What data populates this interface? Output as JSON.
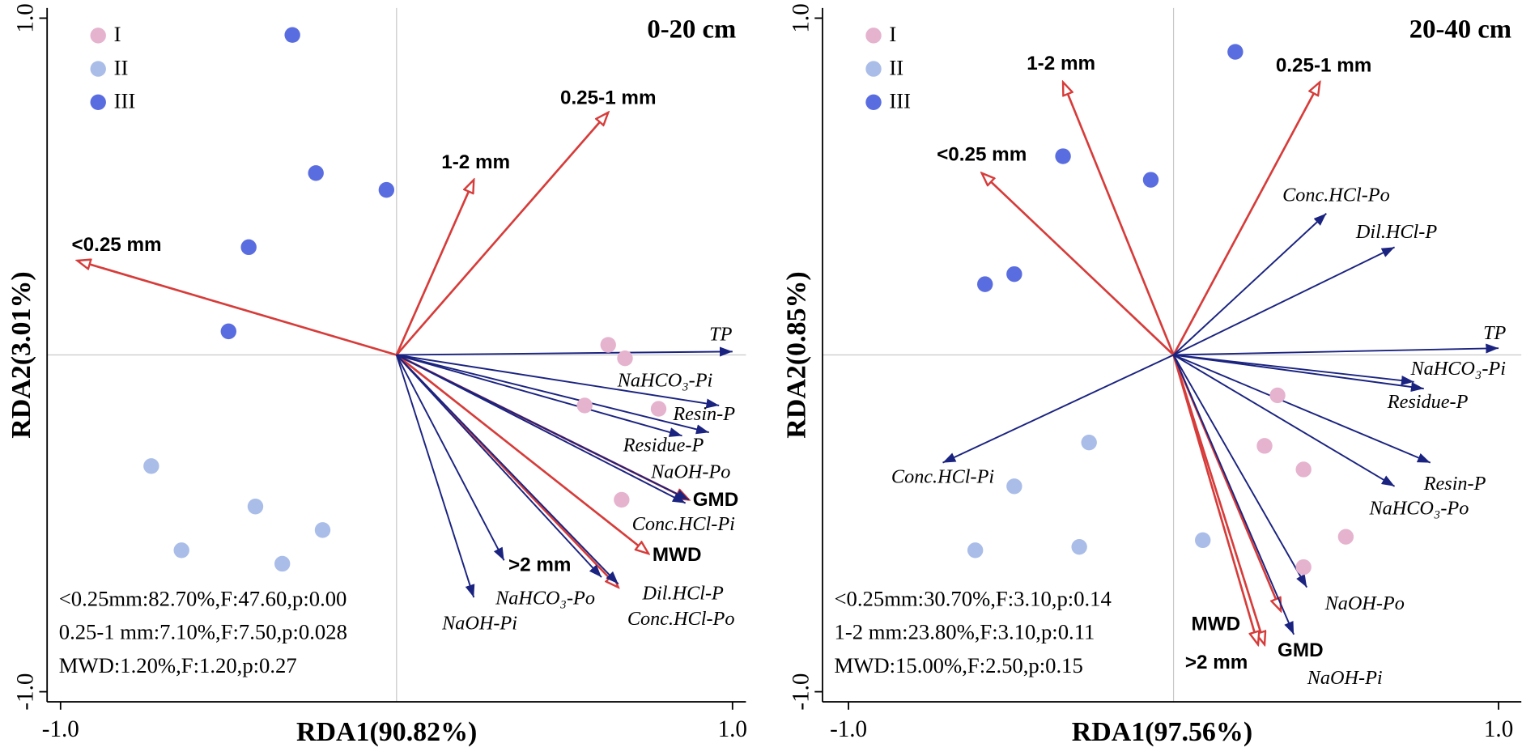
{
  "chart_data": [
    {
      "type": "rda-biplot",
      "corner_label": "0-20 cm",
      "x_label": "RDA1(90.82%)",
      "y_label": "RDA2(3.01%)",
      "xlim": [
        -1.04,
        1.04
      ],
      "ylim": [
        -1.03,
        1.03
      ],
      "xticks": [
        {
          "value": -1,
          "label": "-1.0"
        },
        {
          "value": 1,
          "label": "1.0"
        }
      ],
      "yticks": [
        {
          "value": -1,
          "label": "-1.0"
        },
        {
          "value": 1,
          "label": "1.0"
        }
      ],
      "series": [
        {
          "name": "I",
          "color": "#e6b3cf",
          "x": [
            0.63,
            0.68,
            0.56,
            0.78,
            0.67
          ],
          "y": [
            0.03,
            -0.01,
            -0.15,
            -0.16,
            -0.43
          ]
        },
        {
          "name": "II",
          "color": "#aabde8",
          "x": [
            -0.73,
            -0.42,
            -0.64,
            -0.34,
            -0.22
          ],
          "y": [
            -0.33,
            -0.45,
            -0.58,
            -0.62,
            -0.52
          ]
        },
        {
          "name": "III",
          "color": "#5a6de0",
          "x": [
            -0.31,
            -0.24,
            -0.03,
            -0.44,
            -0.5
          ],
          "y": [
            0.95,
            0.54,
            0.49,
            0.32,
            0.07
          ]
        }
      ],
      "arrow_groups": [
        {
          "color": "#d63c3a",
          "names": [
            "<0.25 mm",
            "1-2 mm",
            "0.25-1 mm",
            ">2 mm",
            "MWD",
            "GMD"
          ],
          "x": [
            -0.95,
            0.23,
            0.63,
            0.66,
            0.75,
            0.87
          ],
          "y": [
            0.28,
            0.52,
            0.72,
            -0.69,
            -0.59,
            -0.43
          ]
        },
        {
          "color": "#1a2380",
          "names": [
            "TP",
            "NaHCO₃-Pi",
            "Resin-P",
            "Residue-P",
            "NaOH-Po",
            "Conc.HCl-Pi",
            "Dil.HCl-P",
            "Conc.HCl-Po",
            "NaHCO₃-Po",
            "NaOH-Pi"
          ],
          "x": [
            1.0,
            0.96,
            0.93,
            0.85,
            0.87,
            0.86,
            0.66,
            0.61,
            0.32,
            0.23
          ],
          "y": [
            0.01,
            -0.15,
            -0.23,
            -0.24,
            -0.43,
            -0.44,
            -0.68,
            -0.66,
            -0.61,
            -0.72
          ]
        }
      ],
      "annotations": [
        "<0.25mm:82.70%,F:47.60,p:0.00",
        "0.25-1 mm:7.10%,F:7.50,p:0.028",
        "MWD:1.20%,F:1.20,p:0.27"
      ]
    },
    {
      "type": "rda-biplot",
      "corner_label": "20-40 cm",
      "x_label": "RDA1(97.56%)",
      "y_label": "RDA2(0.85%)",
      "xlim": [
        -1.08,
        1.07
      ],
      "ylim": [
        -1.03,
        1.03
      ],
      "xticks": [
        {
          "value": -1,
          "label": "-1.0"
        },
        {
          "value": 1,
          "label": "1.0"
        }
      ],
      "yticks": [
        {
          "value": -1,
          "label": "-1.0"
        },
        {
          "value": 1,
          "label": "1.0"
        }
      ],
      "series": [
        {
          "name": "I",
          "color": "#e6b3cf",
          "x": [
            0.32,
            0.28,
            0.4,
            0.53,
            0.4
          ],
          "y": [
            -0.12,
            -0.27,
            -0.34,
            -0.54,
            -0.63
          ]
        },
        {
          "name": "II",
          "color": "#aabde8",
          "x": [
            -0.26,
            -0.49,
            -0.61,
            -0.29,
            0.09
          ],
          "y": [
            -0.26,
            -0.39,
            -0.58,
            -0.57,
            -0.55
          ]
        },
        {
          "name": "III",
          "color": "#5a6de0",
          "x": [
            0.19,
            -0.34,
            -0.07,
            -0.49,
            -0.58
          ],
          "y": [
            0.9,
            0.59,
            0.52,
            0.24,
            0.21
          ]
        }
      ],
      "arrow_groups": [
        {
          "color": "#d63c3a",
          "names": [
            "<0.25 mm",
            "1-2 mm",
            "0.25-1 mm",
            ">2 mm",
            "MWD",
            "GMD"
          ],
          "x": [
            -0.59,
            -0.34,
            0.45,
            0.28,
            0.26,
            0.33
          ],
          "y": [
            0.54,
            0.81,
            0.81,
            -0.86,
            -0.86,
            -0.76
          ]
        },
        {
          "color": "#1a2380",
          "names": [
            "Conc.HCl-Po",
            "Dil.HCl-P",
            "TP",
            "NaHCO₃-Pi",
            "Residue-P",
            "Resin-P",
            "NaHCO₃-Po",
            "NaOH-Po",
            "NaOH-Pi",
            "Conc.HCl-Pi"
          ],
          "x": [
            0.47,
            0.68,
            1.0,
            0.74,
            0.77,
            0.79,
            0.68,
            0.41,
            0.37,
            -0.71
          ],
          "y": [
            0.42,
            0.32,
            0.02,
            -0.08,
            -0.1,
            -0.32,
            -0.39,
            -0.69,
            -0.83,
            -0.32
          ]
        }
      ],
      "annotations": [
        "<0.25mm:30.70%,F:3.10,p:0.14",
        "1-2 mm:23.80%,F:3.10,p:0.11",
        "MWD:15.00%,F:2.50,p:0.15"
      ]
    }
  ]
}
